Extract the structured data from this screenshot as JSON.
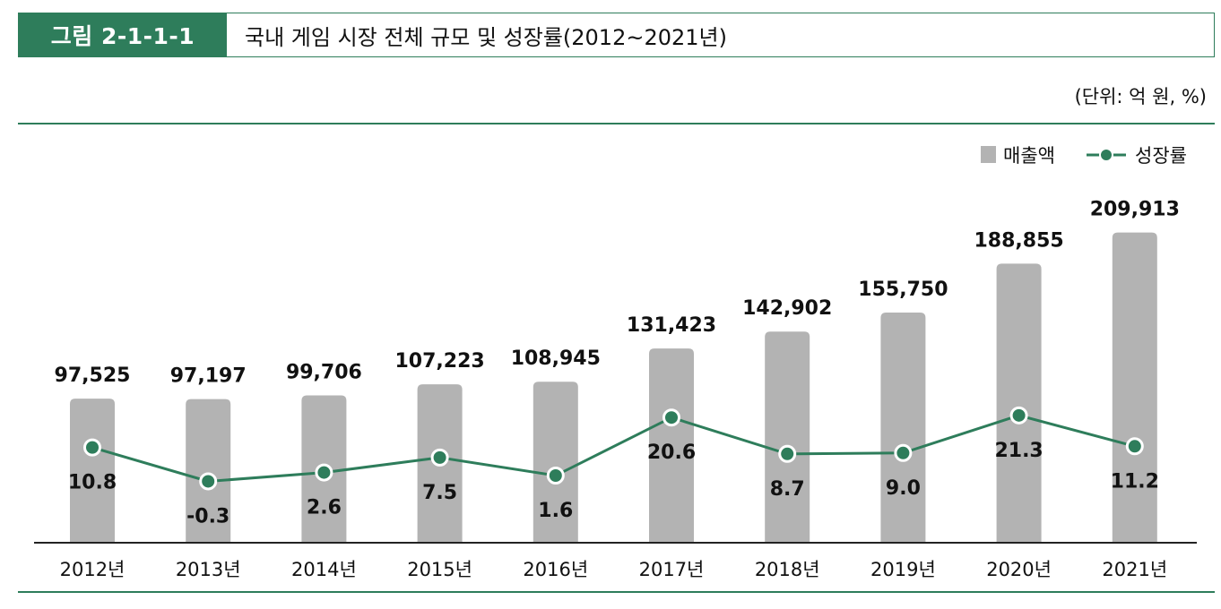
{
  "figure": {
    "label": "그림 2-1-1-1",
    "title": "국내 게임 시장 전체 규모 및 성장률(2012~2021년)",
    "unit": "(단위: 억 원, %)"
  },
  "colors": {
    "accent": "#2e7d5b",
    "bar": "#b3b3b3",
    "line": "#2e7d5b"
  },
  "chart_data": {
    "type": "bar",
    "title": "국내 게임 시장 전체 규모 및 성장률(2012~2021년)",
    "categories": [
      "2012년",
      "2013년",
      "2014년",
      "2015년",
      "2016년",
      "2017년",
      "2018년",
      "2019년",
      "2020년",
      "2021년"
    ],
    "series": [
      {
        "name": "매출액",
        "type": "bar",
        "values": [
          97525,
          97197,
          99706,
          107223,
          108945,
          131423,
          142902,
          155750,
          188855,
          209913
        ],
        "labels": [
          "97,525",
          "97,197",
          "99,706",
          "107,223",
          "108,945",
          "131,423",
          "142,902",
          "155,750",
          "188,855",
          "209,913"
        ]
      },
      {
        "name": "성장률",
        "type": "line",
        "values": [
          10.8,
          -0.3,
          2.6,
          7.5,
          1.6,
          20.6,
          8.7,
          9.0,
          21.3,
          11.2
        ],
        "labels": [
          "10.8",
          "-0.3",
          "2.6",
          "7.5",
          "1.6",
          "20.6",
          "8.7",
          "9.0",
          "21.3",
          "11.2"
        ]
      }
    ],
    "ylim_bar": [
      0,
      260000
    ],
    "ylim_line": [
      -5,
      40
    ],
    "legend": {
      "position": "top-right",
      "items": [
        "매출액",
        "성장률"
      ]
    },
    "grid": false
  }
}
